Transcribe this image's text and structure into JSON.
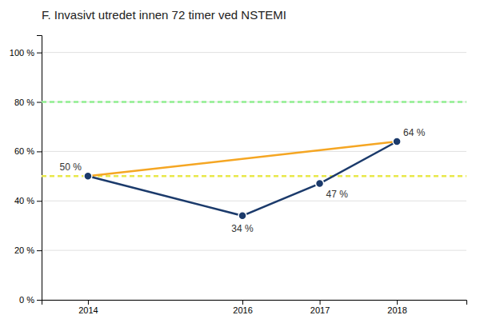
{
  "chart_data": {
    "type": "line",
    "title": "F.  Invasivt utredet innen 72 timer ved NSTEMI",
    "x": [
      2014,
      2016,
      2017,
      2018
    ],
    "series": [
      {
        "color": "#1b3a6b",
        "marker": "circle",
        "values": [
          50,
          34,
          47,
          64
        ],
        "data_labels": true,
        "value_labels": [
          "50 %",
          "34 %",
          "47 %",
          "64 %"
        ]
      },
      {
        "color": "#f5a623",
        "x": [
          2014,
          2018
        ],
        "values": [
          50,
          64
        ]
      }
    ],
    "reference_lines": [
      {
        "y": 50,
        "color": "#e8e84a",
        "line_style": "dashed"
      },
      {
        "y": 80,
        "color": "#90ee90",
        "line_style": "dashed"
      }
    ],
    "xlim": [
      2013.4,
      2018.9
    ],
    "xticks": [
      2014,
      2016,
      2017,
      2018
    ],
    "ylim": [
      0,
      107
    ],
    "yticks": [
      {
        "value": 0,
        "label": "0 %"
      },
      {
        "value": 20,
        "label": "20 %"
      },
      {
        "value": 40,
        "label": "40 %"
      },
      {
        "value": 60,
        "label": "60 %"
      },
      {
        "value": 80,
        "label": "80 %"
      },
      {
        "value": 100,
        "label": "100 %"
      }
    ],
    "grid": true
  }
}
